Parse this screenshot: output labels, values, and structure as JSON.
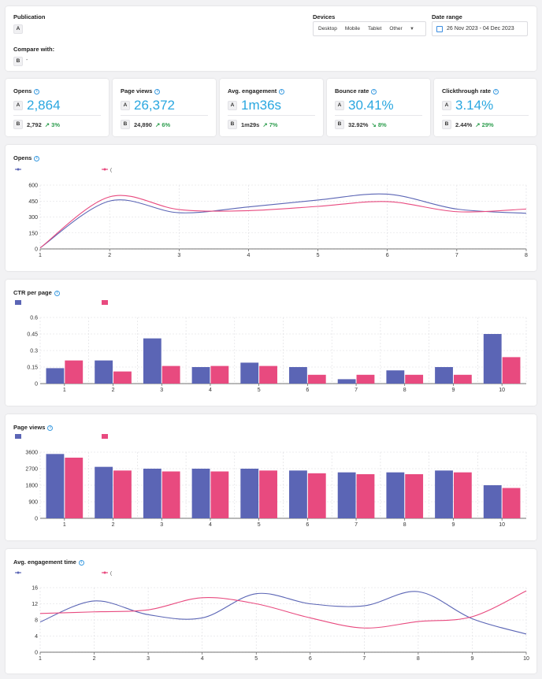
{
  "filters": {
    "publication_label": "Publication",
    "publication_badge": "A",
    "devices_label": "Devices",
    "devices": [
      "Desktop",
      "Mobile",
      "Tablet",
      "Other"
    ],
    "date_range_label": "Date range",
    "date_range_value": "26 Nov 2023 - 04 Dec 2023",
    "compare_label": "Compare with:",
    "compare_badge": "B",
    "compare_value": "-"
  },
  "metrics": [
    {
      "title": "Opens",
      "a_value": "2,864",
      "b_value": "2,792",
      "delta": "3%",
      "delta_dir": "up"
    },
    {
      "title": "Page views",
      "a_value": "26,372",
      "b_value": "24,890",
      "delta": "6%",
      "delta_dir": "up"
    },
    {
      "title": "Avg. engagement",
      "a_value": "1m36s",
      "b_value": "1m29s",
      "delta": "7%",
      "delta_dir": "up"
    },
    {
      "title": "Bounce rate",
      "a_value": "30.41%",
      "b_value": "32.92%",
      "delta": "8%",
      "delta_dir": "down"
    },
    {
      "title": "Clickthrough rate",
      "a_value": "3.14%",
      "b_value": "2.44%",
      "delta": "29%",
      "delta_dir": "up"
    }
  ],
  "badges": {
    "a": "A",
    "b": "B"
  },
  "colors": {
    "series_a": "#5b65b5",
    "series_b": "#e84a7f",
    "accent": "#2aa7e0",
    "positive": "#2e9e4f"
  },
  "chart_data": [
    {
      "type": "line",
      "title": "Opens",
      "x": [
        1,
        2,
        3,
        4,
        5,
        6,
        7,
        8
      ],
      "series": [
        {
          "name": "",
          "values": [
            10,
            450,
            340,
            395,
            460,
            515,
            375,
            335
          ]
        },
        {
          "name": "(",
          "values": [
            10,
            490,
            370,
            360,
            400,
            445,
            350,
            375
          ]
        }
      ],
      "yticks": [
        0,
        150,
        300,
        450,
        600
      ],
      "ylim": [
        0,
        600
      ],
      "grid": true,
      "legend": "top-left"
    },
    {
      "type": "bar",
      "title": "CTR per page",
      "categories": [
        "1",
        "2",
        "3",
        "4",
        "5",
        "6",
        "7",
        "8",
        "9",
        "10"
      ],
      "series": [
        {
          "name": "",
          "values": [
            0.14,
            0.21,
            0.41,
            0.15,
            0.19,
            0.15,
            0.04,
            0.12,
            0.15,
            0.45
          ]
        },
        {
          "name": "",
          "values": [
            0.21,
            0.11,
            0.16,
            0.16,
            0.16,
            0.08,
            0.08,
            0.08,
            0.08,
            0.24
          ]
        }
      ],
      "ytick_labels": [
        "0",
        "0.15",
        "0.3",
        "0.45",
        "0.6"
      ],
      "ylim": [
        0,
        0.6
      ],
      "grid": true,
      "legend": "top-left"
    },
    {
      "type": "bar",
      "title": "Page views",
      "categories": [
        "1",
        "2",
        "3",
        "4",
        "5",
        "6",
        "7",
        "8",
        "9",
        "10"
      ],
      "series": [
        {
          "name": "",
          "values": [
            3500,
            2800,
            2700,
            2700,
            2700,
            2600,
            2500,
            2500,
            2600,
            1800
          ]
        },
        {
          "name": "",
          "values": [
            3300,
            2600,
            2550,
            2550,
            2600,
            2450,
            2400,
            2400,
            2500,
            1650
          ]
        }
      ],
      "ytick_labels": [
        "0",
        "900",
        "1800",
        "2700",
        "3600"
      ],
      "ylim": [
        0,
        3600
      ],
      "grid": true,
      "legend": "top-left"
    },
    {
      "type": "line",
      "title": "Avg. engagement time",
      "x": [
        1,
        2,
        3,
        4,
        5,
        6,
        7,
        8,
        9,
        10
      ],
      "series": [
        {
          "name": "",
          "values": [
            7.5,
            12.7,
            9.3,
            8.5,
            14.5,
            12.0,
            11.5,
            15.0,
            8.3,
            4.5
          ]
        },
        {
          "name": "(",
          "values": [
            9.6,
            10.0,
            10.5,
            13.5,
            12.0,
            8.5,
            6.0,
            7.6,
            8.8,
            15.2
          ]
        }
      ],
      "yticks": [
        0,
        4,
        8,
        12,
        16
      ],
      "ylim": [
        0,
        16
      ],
      "grid": true,
      "legend": "top-left"
    }
  ]
}
